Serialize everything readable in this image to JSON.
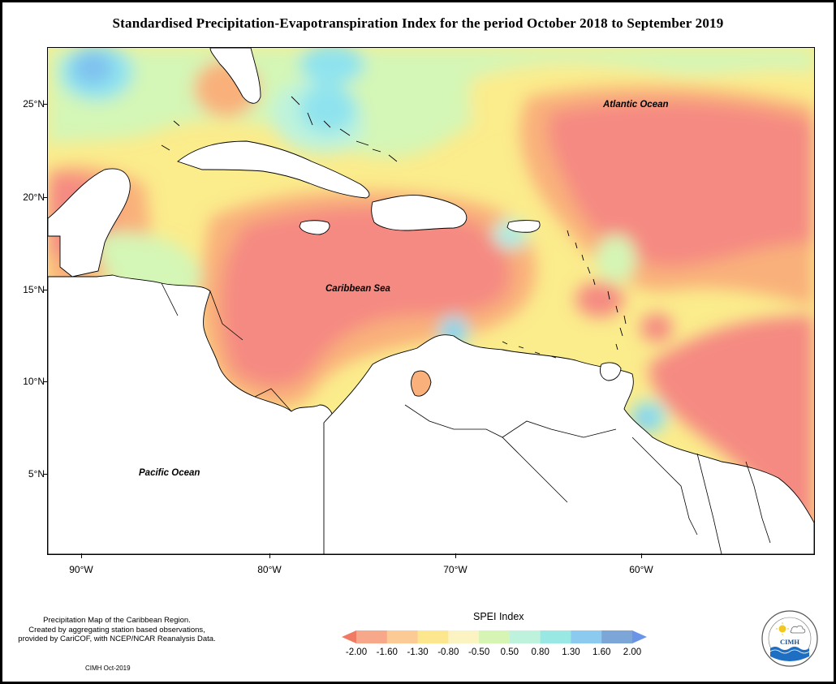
{
  "title": "Standardised Precipitation-Evapotranspiration Index for the period October 2018 to September 2019",
  "map": {
    "lat_labels": [
      "25°N",
      "20°N",
      "15°N",
      "10°N",
      "5°N"
    ],
    "lon_labels": [
      "90°W",
      "80°W",
      "70°W",
      "60°W"
    ],
    "ocean_labels": {
      "atlantic": "Atlantic Ocean",
      "caribbean": "Caribbean Sea",
      "pacific": "Pacific Ocean"
    },
    "colors": {
      "very_dry": "#f58a82",
      "dry": "#f9b07a",
      "moderately_dry": "#fcd084",
      "slightly_dry": "#fbec8c",
      "near_normal": "#f5f5c0",
      "slightly_wet": "#d4f6b6",
      "moderately_wet": "#bef3dc",
      "wet": "#8fe3ee",
      "very_wet": "#7fc1ef",
      "land": "#ffffff"
    }
  },
  "legend": {
    "title": "SPEI Index",
    "ticks": [
      "-2.00",
      "-1.60",
      "-1.30",
      "-0.80",
      "-0.50",
      "0.50",
      "0.80",
      "1.30",
      "1.60",
      "2.00"
    ],
    "colors": [
      "#f07a62",
      "#f8a88a",
      "#fcca94",
      "#fce68e",
      "#fbf4c2",
      "#d6f4b4",
      "#bff2dc",
      "#9ae8e4",
      "#8ccaf0",
      "#7ca6d8",
      "#6a94e8"
    ]
  },
  "notes": {
    "line1": "Precipitation Map of the Caribbean Region.",
    "line2": "Created by aggregating station based observations,",
    "line3": "provided by CariCOF, with NCEP/NCAR Reanalysis Data.",
    "credit": "CIMH Oct-2019"
  },
  "logo": {
    "text": "CIMH",
    "ring_text": "Caribbean Institute for Meteorology and Hydrology",
    "icon": "cimh-logo-icon"
  }
}
